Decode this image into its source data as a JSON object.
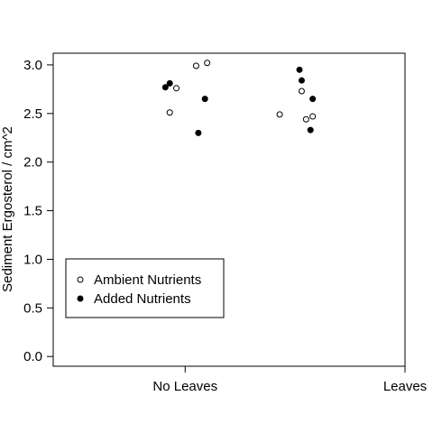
{
  "chart_data": {
    "type": "scatter",
    "title": "",
    "xlabel": "",
    "ylabel": "Sediment Ergosterol / cm^2",
    "categories": [
      "No Leaves",
      "Leaves"
    ],
    "xlim": [
      0.4,
      2.0
    ],
    "ylim": [
      -0.1,
      3.12
    ],
    "yticks": [
      "0.0",
      "0.5",
      "1.0",
      "1.5",
      "2.0",
      "2.5",
      "3.0"
    ],
    "grid": false,
    "legend_position": "bottom-left",
    "series": [
      {
        "name": "Ambient Nutrients",
        "marker": "open-circle",
        "color": "#000000",
        "points": [
          {
            "x": 0.93,
            "y": 2.51
          },
          {
            "x": 0.96,
            "y": 2.76
          },
          {
            "x": 1.05,
            "y": 2.99
          },
          {
            "x": 1.1,
            "y": 3.02
          },
          {
            "x": 1.43,
            "y": 2.49
          },
          {
            "x": 1.53,
            "y": 2.73
          },
          {
            "x": 1.55,
            "y": 2.44
          },
          {
            "x": 1.58,
            "y": 2.47
          }
        ]
      },
      {
        "name": "Added Nutrients",
        "marker": "filled-circle",
        "color": "#000000",
        "points": [
          {
            "x": 0.91,
            "y": 2.77
          },
          {
            "x": 0.93,
            "y": 2.81
          },
          {
            "x": 1.06,
            "y": 2.3
          },
          {
            "x": 1.09,
            "y": 2.65
          },
          {
            "x": 1.52,
            "y": 2.95
          },
          {
            "x": 1.53,
            "y": 2.84
          },
          {
            "x": 1.57,
            "y": 2.33
          },
          {
            "x": 1.58,
            "y": 2.65
          }
        ]
      }
    ]
  }
}
